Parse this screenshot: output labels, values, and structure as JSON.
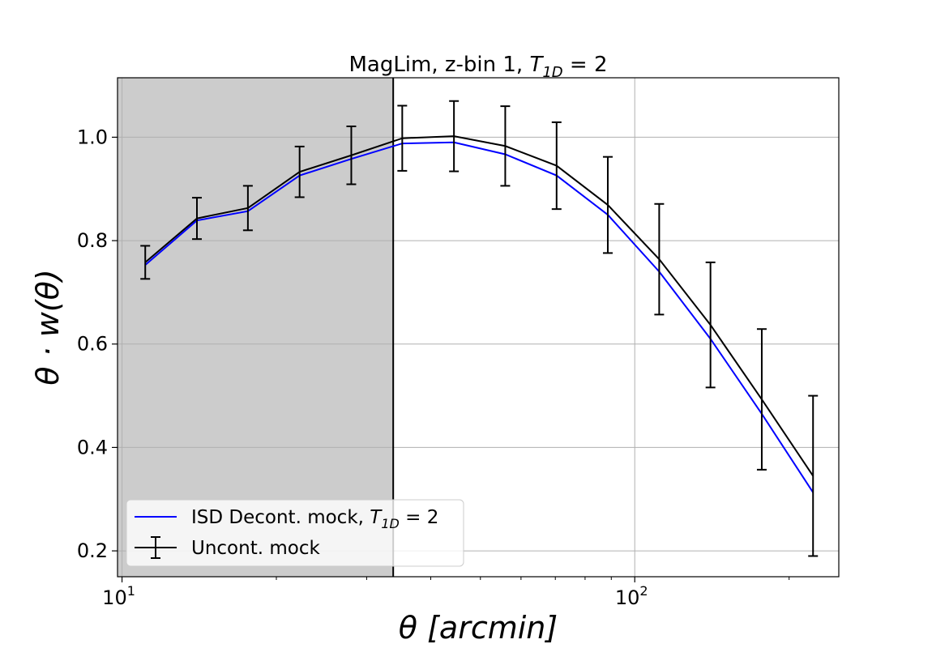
{
  "chart_data": {
    "type": "line",
    "title": "MagLim, z-bin 1, T_1D = 2",
    "title_parts": {
      "prefix": "MagLim, z-bin 1, ",
      "var": "T",
      "sub": "1D",
      "suffix": " =  2"
    },
    "xlabel": "θ [arcmin]",
    "ylabel": "θ · w(θ)",
    "xscale": "log",
    "xlim": [
      9.8,
      250
    ],
    "ylim": [
      0.15,
      1.115
    ],
    "x_ticks": [
      {
        "value": 10,
        "base": "10",
        "exp": "1"
      },
      {
        "value": 100,
        "base": "10",
        "exp": "2"
      }
    ],
    "y_ticks": [
      0.2,
      0.4,
      0.6,
      0.8,
      1.0
    ],
    "y_tick_labels": [
      "0.2",
      "0.4",
      "0.6",
      "0.8",
      "1.0"
    ],
    "grid": true,
    "legend_position": "lower-left",
    "shaded_region": {
      "x_from": 9.8,
      "x_to": 33.8,
      "color": "#cccccc"
    },
    "vertical_line": {
      "x": 33.8,
      "color": "#000000"
    },
    "x": [
      11.1,
      14.0,
      17.6,
      22.2,
      28.0,
      35.2,
      44.4,
      55.9,
      70.4,
      88.6,
      111.6,
      140.5,
      176.9,
      222.7
    ],
    "series": [
      {
        "name": "ISD Decont. mock, T_1D = 2",
        "legend_parts": {
          "prefix": "ISD Decont. mock, ",
          "var": "T",
          "sub": "1D",
          "suffix": " = 2"
        },
        "color": "#0000ff",
        "values": [
          0.753,
          0.839,
          0.857,
          0.926,
          0.958,
          0.988,
          0.99,
          0.967,
          0.926,
          0.85,
          0.74,
          0.61,
          0.465,
          0.313
        ]
      },
      {
        "name": "Uncont. mock",
        "color": "#000000",
        "values": [
          0.758,
          0.843,
          0.863,
          0.933,
          0.965,
          0.998,
          1.002,
          0.983,
          0.945,
          0.869,
          0.764,
          0.637,
          0.493,
          0.345
        ],
        "errors": [
          0.032,
          0.04,
          0.043,
          0.049,
          0.056,
          0.063,
          0.068,
          0.077,
          0.084,
          0.093,
          0.107,
          0.121,
          0.136,
          0.155
        ]
      }
    ],
    "legend": [
      {
        "label": "ISD Decont. mock, T_1D = 2",
        "style": "line",
        "color": "#0000ff"
      },
      {
        "label": "Uncont. mock",
        "style": "errorbar",
        "color": "#000000"
      }
    ]
  }
}
